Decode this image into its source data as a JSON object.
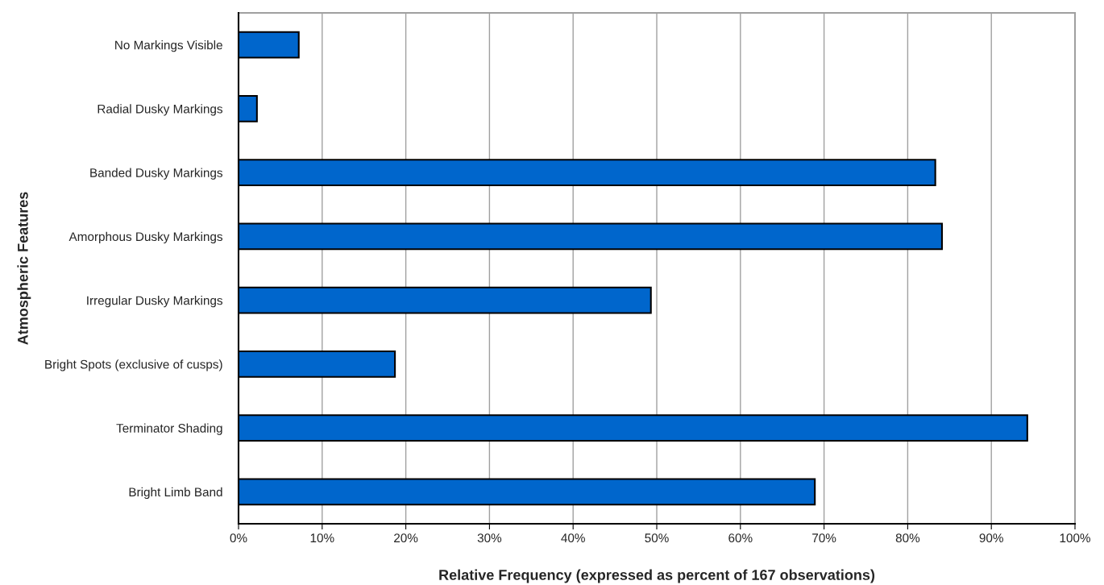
{
  "chart_data": {
    "type": "bar",
    "orientation": "horizontal",
    "categories": [
      "No Markings Visible",
      "Radial Dusky Markings",
      "Banded Dusky Markings",
      "Amorphous Dusky Markings",
      "Irregular Dusky Markings",
      "Bright Spots (exclusive of cusps)",
      "Terminator Shading",
      "Bright Limb Band"
    ],
    "values": [
      7.2,
      2.2,
      83.3,
      84.1,
      49.3,
      18.7,
      94.3,
      68.9
    ],
    "color": "#0066cc",
    "xlabel": "Relative Frequency (expressed as percent of 167 observations)",
    "ylabel": "Atmospheric Features",
    "xlim": [
      0,
      100
    ],
    "xticks": [
      {
        "value": 0,
        "label": "0%"
      },
      {
        "value": 10,
        "label": "10%"
      },
      {
        "value": 20,
        "label": "20%"
      },
      {
        "value": 30,
        "label": "30%"
      },
      {
        "value": 40,
        "label": "40%"
      },
      {
        "value": 50,
        "label": "50%"
      },
      {
        "value": 60,
        "label": "60%"
      },
      {
        "value": 70,
        "label": "70%"
      },
      {
        "value": 80,
        "label": "80%"
      },
      {
        "value": 90,
        "label": "90%"
      },
      {
        "value": 100,
        "label": "100%"
      }
    ],
    "grid": "x"
  }
}
